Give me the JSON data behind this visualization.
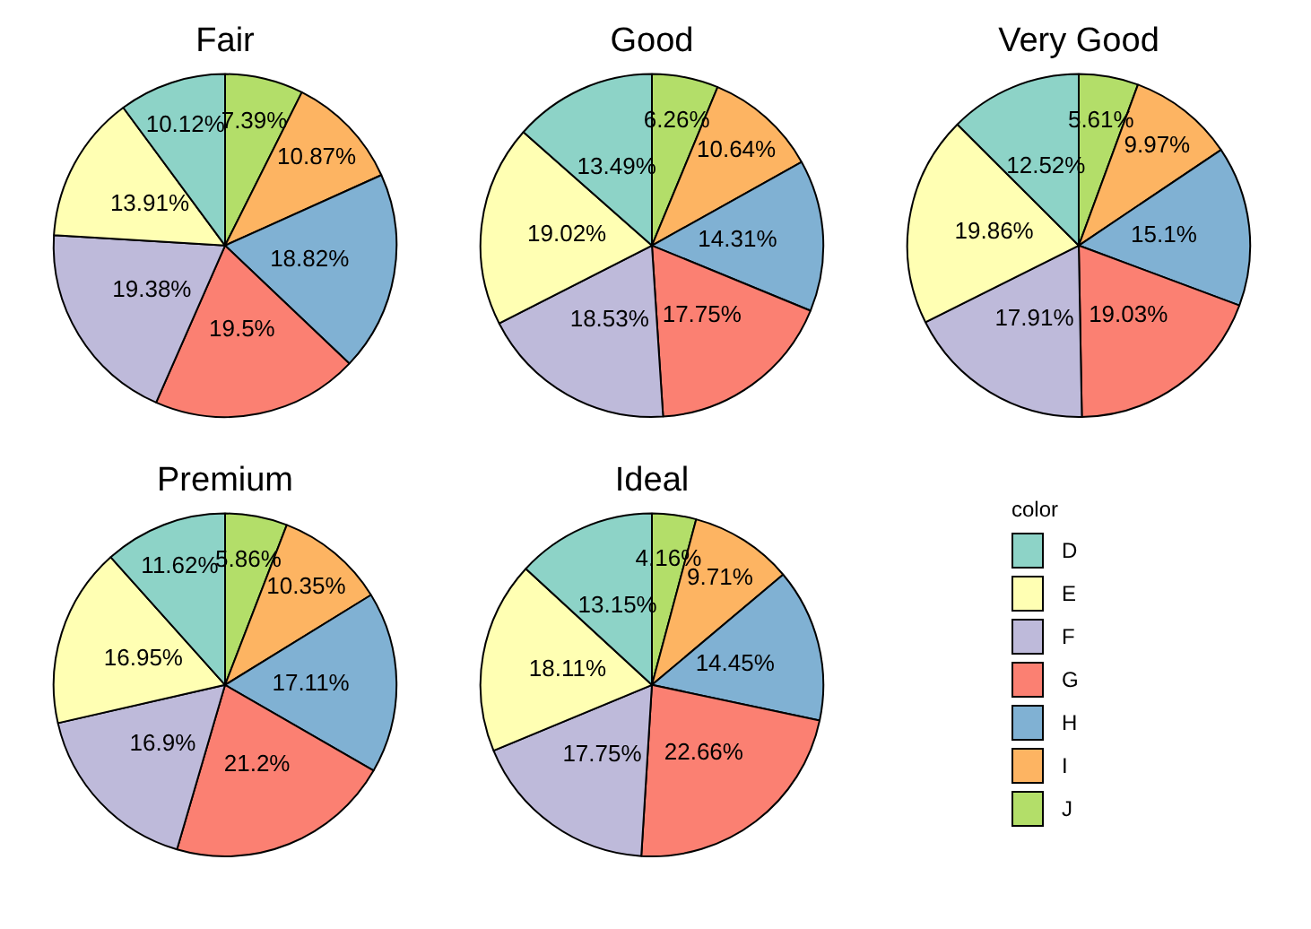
{
  "chart_data": [
    {
      "type": "pie",
      "title": "Fair",
      "categories": [
        null,
        null,
        null,
        null,
        null,
        null,
        null
      ],
      "values": [
        10.12,
        13.91,
        19.38,
        19.5,
        18.82,
        10.87,
        7.39
      ],
      "value_labels": [
        "10.12%",
        "13.91%",
        "19.38%",
        "19.5%",
        "18.82%",
        "10.87%",
        "7.39%"
      ],
      "colors": [
        "#8dd3c7",
        "#ffffb3",
        "#bebada",
        "#fb8072",
        "#80b1d3",
        "#fdb462",
        "#b3de69"
      ]
    },
    {
      "type": "pie",
      "title": "Good",
      "categories": [
        null,
        null,
        null,
        null,
        null,
        null,
        null
      ],
      "values": [
        13.49,
        19.02,
        18.53,
        17.75,
        14.31,
        10.64,
        6.26
      ],
      "value_labels": [
        "13.49%",
        "19.02%",
        "18.53%",
        "17.75%",
        "14.31%",
        "10.64%",
        "6.26%"
      ],
      "colors": [
        "#8dd3c7",
        "#ffffb3",
        "#bebada",
        "#fb8072",
        "#80b1d3",
        "#fdb462",
        "#b3de69"
      ]
    },
    {
      "type": "pie",
      "title": "Very Good",
      "categories": [
        null,
        null,
        null,
        null,
        null,
        null,
        null
      ],
      "values": [
        12.52,
        19.86,
        17.91,
        19.03,
        15.1,
        9.97,
        5.61
      ],
      "value_labels": [
        "12.52%",
        "19.86%",
        "17.91%",
        "19.03%",
        "15.1%",
        "9.97%",
        "5.61%"
      ],
      "colors": [
        "#8dd3c7",
        "#ffffb3",
        "#bebada",
        "#fb8072",
        "#80b1d3",
        "#fdb462",
        "#b3de69"
      ]
    },
    {
      "type": "pie",
      "title": "Premium",
      "categories": [
        null,
        null,
        null,
        null,
        null,
        null,
        null
      ],
      "values": [
        11.62,
        16.95,
        16.9,
        21.2,
        17.11,
        10.35,
        5.86
      ],
      "value_labels": [
        "11.62%",
        "16.95%",
        "16.9%",
        "21.2%",
        "17.11%",
        "10.35%",
        "5.86%"
      ],
      "colors": [
        "#8dd3c7",
        "#ffffb3",
        "#bebada",
        "#fb8072",
        "#80b1d3",
        "#fdb462",
        "#b3de69"
      ]
    },
    {
      "type": "pie",
      "title": "Ideal",
      "legend": "right",
      "legend_title": "color",
      "categories": [
        "D",
        "E",
        "F",
        "G",
        "H",
        "I",
        "J"
      ],
      "values": [
        13.15,
        18.11,
        17.75,
        22.66,
        14.45,
        9.71,
        4.16
      ],
      "value_labels": [
        "13.15%",
        "18.11%",
        "17.75%",
        "22.66%",
        "14.45%",
        "9.71%",
        "4.16%"
      ],
      "colors": [
        "#8dd3c7",
        "#ffffb3",
        "#bebada",
        "#fb8072",
        "#80b1d3",
        "#fdb462",
        "#b3de69"
      ]
    }
  ]
}
